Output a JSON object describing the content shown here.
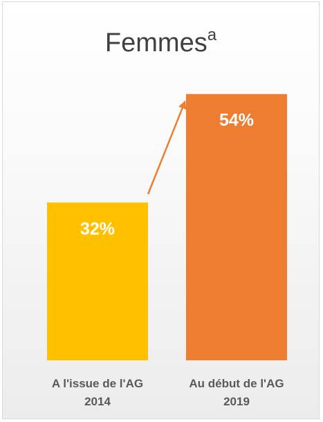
{
  "chart_data": {
    "type": "bar",
    "title": "Femmes",
    "title_superscript": "a",
    "categories": [
      [
        "A l'issue de l'AG",
        "2014"
      ],
      [
        "Au début de l'AG",
        "2019"
      ]
    ],
    "values": [
      32,
      54
    ],
    "data_labels": [
      "32%",
      "54%"
    ],
    "colors": [
      "#FFC000",
      "#ED7D31"
    ],
    "ylim": [
      0,
      60
    ],
    "grid": false,
    "legend": "none",
    "annotations": [
      {
        "type": "arrow",
        "from_category": 0,
        "to_category": 1,
        "color": "#ED7D31"
      }
    ]
  }
}
